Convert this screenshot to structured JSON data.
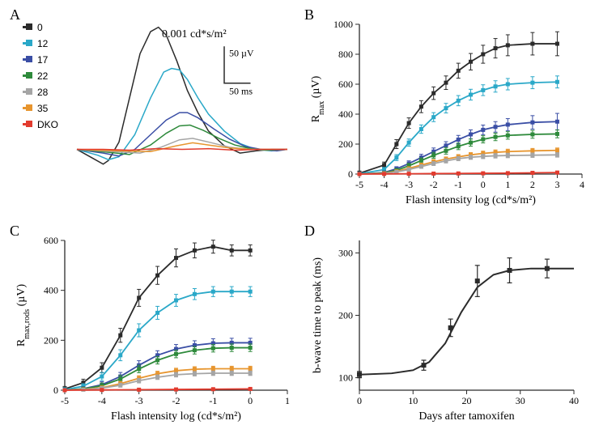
{
  "palette": {
    "c0": "#2b2b2b",
    "c12": "#2aa8c8",
    "c17": "#3a4ea5",
    "c22": "#2e8a3b",
    "c28": "#a5a5a5",
    "c35": "#e7952e",
    "cDKO": "#e23b2e",
    "axis": "#2b2b2b",
    "bg": "#ffffff"
  },
  "legend": {
    "items": [
      {
        "label": "0",
        "color_key": "c0"
      },
      {
        "label": "12",
        "color_key": "c12"
      },
      {
        "label": "17",
        "color_key": "c17"
      },
      {
        "label": "22",
        "color_key": "c22"
      },
      {
        "label": "28",
        "color_key": "c28"
      },
      {
        "label": "35",
        "color_key": "c35"
      },
      {
        "label": "DKO",
        "color_key": "cDKO"
      }
    ],
    "marker_size": 8,
    "fontsize": 12
  },
  "panelA": {
    "label": "A",
    "type": "line",
    "annotation": "0.001 cd*s/m²",
    "annotation_fontsize": 14,
    "scalebar": {
      "v_value": "50 µV",
      "h_value": "50 ms"
    },
    "x_range_ms": [
      0,
      400
    ],
    "y_range_uV": [
      -50,
      170
    ],
    "traces": {
      "0": [
        [
          0,
          0
        ],
        [
          30,
          -12
        ],
        [
          50,
          -20
        ],
        [
          60,
          -15
        ],
        [
          80,
          10
        ],
        [
          100,
          70
        ],
        [
          120,
          130
        ],
        [
          140,
          160
        ],
        [
          155,
          166
        ],
        [
          170,
          155
        ],
        [
          190,
          120
        ],
        [
          210,
          80
        ],
        [
          230,
          50
        ],
        [
          250,
          25
        ],
        [
          280,
          5
        ],
        [
          310,
          -5
        ],
        [
          340,
          -2
        ],
        [
          370,
          0
        ],
        [
          400,
          0
        ]
      ],
      "12": [
        [
          0,
          0
        ],
        [
          40,
          -8
        ],
        [
          60,
          -14
        ],
        [
          80,
          -10
        ],
        [
          110,
          20
        ],
        [
          140,
          70
        ],
        [
          165,
          105
        ],
        [
          180,
          110
        ],
        [
          195,
          108
        ],
        [
          210,
          95
        ],
        [
          230,
          70
        ],
        [
          250,
          48
        ],
        [
          280,
          25
        ],
        [
          310,
          8
        ],
        [
          340,
          0
        ],
        [
          370,
          -2
        ],
        [
          400,
          0
        ]
      ],
      "17": [
        [
          0,
          0
        ],
        [
          50,
          -5
        ],
        [
          80,
          -9
        ],
        [
          110,
          0
        ],
        [
          140,
          20
        ],
        [
          170,
          40
        ],
        [
          195,
          50
        ],
        [
          210,
          50
        ],
        [
          230,
          43
        ],
        [
          260,
          28
        ],
        [
          290,
          14
        ],
        [
          320,
          4
        ],
        [
          350,
          0
        ],
        [
          380,
          -2
        ],
        [
          400,
          0
        ]
      ],
      "22": [
        [
          0,
          0
        ],
        [
          60,
          -4
        ],
        [
          100,
          -7
        ],
        [
          140,
          6
        ],
        [
          170,
          22
        ],
        [
          195,
          32
        ],
        [
          215,
          33
        ],
        [
          240,
          26
        ],
        [
          270,
          15
        ],
        [
          300,
          6
        ],
        [
          330,
          1
        ],
        [
          360,
          -1
        ],
        [
          400,
          0
        ]
      ],
      "28": [
        [
          0,
          0
        ],
        [
          70,
          -3
        ],
        [
          120,
          -5
        ],
        [
          160,
          3
        ],
        [
          195,
          13
        ],
        [
          220,
          15
        ],
        [
          250,
          10
        ],
        [
          290,
          3
        ],
        [
          330,
          0
        ],
        [
          370,
          0
        ],
        [
          400,
          0
        ]
      ],
      "35": [
        [
          0,
          0
        ],
        [
          80,
          -2
        ],
        [
          140,
          -3
        ],
        [
          190,
          5
        ],
        [
          220,
          9
        ],
        [
          250,
          6
        ],
        [
          290,
          2
        ],
        [
          330,
          0
        ],
        [
          370,
          0
        ],
        [
          400,
          0
        ]
      ],
      "DKO": [
        [
          0,
          0
        ],
        [
          50,
          0
        ],
        [
          100,
          -1
        ],
        [
          150,
          1
        ],
        [
          200,
          0
        ],
        [
          250,
          1
        ],
        [
          300,
          -1
        ],
        [
          350,
          0
        ],
        [
          400,
          0
        ]
      ]
    },
    "line_width": 1.5
  },
  "panelB": {
    "label": "B",
    "type": "scatter-line",
    "xlabel": "Flash intensity log (cd*s/m²)",
    "ylabel": "R_max (µV)",
    "xlim": [
      -5,
      4
    ],
    "ylim": [
      0,
      1000
    ],
    "xticks": [
      -5,
      -4,
      -3,
      -2,
      -1,
      0,
      1,
      2,
      3,
      4
    ],
    "yticks": [
      0,
      200,
      400,
      600,
      800,
      1000
    ],
    "label_fontsize": 14,
    "tick_fontsize": 12,
    "line_width": 1.8,
    "marker_size": 5,
    "series": {
      "0": {
        "x": [
          -5,
          -4,
          -3.5,
          -3,
          -2.5,
          -2,
          -1.5,
          -1,
          -0.5,
          0,
          0.5,
          1,
          2,
          3
        ],
        "y": [
          5,
          60,
          200,
          340,
          450,
          540,
          610,
          690,
          750,
          800,
          840,
          860,
          870,
          870
        ],
        "err": [
          15,
          20,
          30,
          35,
          40,
          42,
          45,
          50,
          55,
          60,
          65,
          70,
          75,
          80
        ]
      },
      "12": {
        "x": [
          -5,
          -4,
          -3.5,
          -3,
          -2.5,
          -2,
          -1.5,
          -1,
          -0.5,
          0,
          0.5,
          1,
          2,
          3
        ],
        "y": [
          2,
          30,
          110,
          210,
          300,
          380,
          440,
          490,
          530,
          560,
          585,
          600,
          610,
          615
        ],
        "err": [
          10,
          14,
          20,
          24,
          28,
          30,
          32,
          34,
          36,
          36,
          38,
          38,
          40,
          40
        ]
      },
      "17": {
        "x": [
          -5,
          -4,
          -3.5,
          -3,
          -2.5,
          -2,
          -1.5,
          -1,
          -0.5,
          0,
          0.5,
          1,
          2,
          3
        ],
        "y": [
          0,
          10,
          35,
          70,
          110,
          150,
          190,
          230,
          265,
          295,
          315,
          330,
          345,
          350
        ],
        "err": [
          8,
          10,
          14,
          18,
          22,
          24,
          26,
          28,
          30,
          32,
          35,
          40,
          45,
          55
        ]
      },
      "22": {
        "x": [
          -5,
          -4,
          -3.5,
          -3,
          -2.5,
          -2,
          -1.5,
          -1,
          -0.5,
          0,
          0.5,
          1,
          2,
          3
        ],
        "y": [
          0,
          8,
          25,
          55,
          90,
          125,
          155,
          185,
          210,
          232,
          248,
          258,
          265,
          268
        ],
        "err": [
          6,
          8,
          12,
          16,
          18,
          20,
          22,
          22,
          24,
          24,
          25,
          25,
          26,
          26
        ]
      },
      "28": {
        "x": [
          -5,
          -4,
          -3.5,
          -3,
          -2.5,
          -2,
          -1.5,
          -1,
          -0.5,
          0,
          0.5,
          1,
          2,
          3
        ],
        "y": [
          0,
          4,
          14,
          30,
          50,
          70,
          88,
          103,
          112,
          118,
          122,
          124,
          126,
          128
        ],
        "err": [
          4,
          5,
          8,
          10,
          12,
          13,
          14,
          14,
          14,
          15,
          15,
          15,
          15,
          15
        ]
      },
      "35": {
        "x": [
          -5,
          -4,
          -3.5,
          -3,
          -2.5,
          -2,
          -1.5,
          -1,
          -0.5,
          0,
          0.5,
          1,
          2,
          3
        ],
        "y": [
          0,
          5,
          18,
          38,
          60,
          82,
          100,
          115,
          128,
          138,
          145,
          150,
          155,
          158
        ],
        "err": [
          4,
          6,
          9,
          11,
          13,
          14,
          14,
          15,
          15,
          15,
          16,
          16,
          16,
          16
        ]
      },
      "DKO": {
        "x": [
          -5,
          -4,
          -3,
          -2,
          -1,
          0,
          1,
          2,
          3
        ],
        "y": [
          0,
          1,
          2,
          3,
          4,
          5,
          6,
          8,
          10
        ],
        "err": [
          2,
          2,
          2,
          3,
          3,
          3,
          3,
          4,
          4
        ]
      }
    }
  },
  "panelC": {
    "label": "C",
    "type": "scatter-line",
    "xlabel": "Flash intensity log (cd*s/m²)",
    "ylabel": "R_max,rods (µV)",
    "xlim": [
      -5,
      1
    ],
    "ylim": [
      0,
      600
    ],
    "xticks": [
      -5,
      -4,
      -3,
      -2,
      -1,
      0,
      1
    ],
    "yticks": [
      0,
      200,
      400,
      600
    ],
    "label_fontsize": 14,
    "tick_fontsize": 12,
    "line_width": 1.8,
    "marker_size": 5,
    "series": {
      "0": {
        "x": [
          -5,
          -4.5,
          -4,
          -3.5,
          -3,
          -2.5,
          -2,
          -1.5,
          -1,
          -0.5,
          0
        ],
        "y": [
          5,
          30,
          90,
          220,
          370,
          460,
          530,
          560,
          575,
          560,
          560
        ],
        "err": [
          10,
          14,
          20,
          28,
          34,
          36,
          36,
          30,
          26,
          22,
          22
        ]
      },
      "12": {
        "x": [
          -5,
          -4.5,
          -4,
          -3.5,
          -3,
          -2.5,
          -2,
          -1.5,
          -1,
          -0.5,
          0
        ],
        "y": [
          2,
          16,
          55,
          140,
          240,
          310,
          360,
          385,
          395,
          395,
          395
        ],
        "err": [
          8,
          10,
          16,
          22,
          26,
          26,
          24,
          22,
          20,
          20,
          20
        ]
      },
      "17": {
        "x": [
          -5,
          -4.5,
          -4,
          -3.5,
          -3,
          -2.5,
          -2,
          -1.5,
          -1,
          -0.5,
          0
        ],
        "y": [
          0,
          6,
          22,
          55,
          100,
          140,
          165,
          180,
          188,
          190,
          190
        ],
        "err": [
          6,
          8,
          12,
          16,
          18,
          18,
          18,
          18,
          18,
          18,
          18
        ]
      },
      "22": {
        "x": [
          -5,
          -4.5,
          -4,
          -3.5,
          -3,
          -2.5,
          -2,
          -1.5,
          -1,
          -0.5,
          0
        ],
        "y": [
          0,
          5,
          18,
          45,
          85,
          120,
          145,
          160,
          168,
          170,
          170
        ],
        "err": [
          5,
          7,
          11,
          14,
          15,
          15,
          15,
          15,
          15,
          15,
          15
        ]
      },
      "28": {
        "x": [
          -5,
          -4.5,
          -4,
          -3.5,
          -3,
          -2.5,
          -2,
          -1.5,
          -1,
          -0.5,
          0
        ],
        "y": [
          0,
          2,
          8,
          20,
          38,
          52,
          62,
          66,
          68,
          68,
          68
        ],
        "err": [
          3,
          4,
          6,
          8,
          9,
          9,
          9,
          9,
          9,
          9,
          9
        ]
      },
      "35": {
        "x": [
          -5,
          -4.5,
          -4,
          -3.5,
          -3,
          -2.5,
          -2,
          -1.5,
          -1,
          -0.5,
          0
        ],
        "y": [
          0,
          3,
          10,
          26,
          48,
          66,
          78,
          84,
          86,
          86,
          86
        ],
        "err": [
          3,
          4,
          7,
          9,
          10,
          10,
          10,
          10,
          10,
          10,
          10
        ]
      },
      "DKO": {
        "x": [
          -5,
          -4,
          -3,
          -2,
          -1,
          0
        ],
        "y": [
          0,
          1,
          2,
          3,
          4,
          5
        ],
        "err": [
          2,
          2,
          2,
          2,
          2,
          2
        ]
      }
    }
  },
  "panelD": {
    "label": "D",
    "type": "scatter-line",
    "xlabel": "Days after tamoxifen",
    "ylabel": "b-wave time to peak (ms)",
    "xlim": [
      0,
      40
    ],
    "ylim": [
      80,
      320
    ],
    "xticks": [
      0,
      10,
      20,
      30,
      40
    ],
    "yticks": [
      100,
      200,
      300
    ],
    "label_fontsize": 14,
    "tick_fontsize": 12,
    "line_width": 2,
    "marker_size": 6,
    "color_key": "c0",
    "data": {
      "x": [
        0,
        12,
        17,
        22,
        28,
        35
      ],
      "y": [
        105,
        120,
        180,
        255,
        272,
        275
      ],
      "err": [
        5,
        8,
        14,
        25,
        20,
        15
      ]
    },
    "fit": [
      [
        0,
        105
      ],
      [
        6,
        107
      ],
      [
        10,
        112
      ],
      [
        13,
        125
      ],
      [
        16,
        155
      ],
      [
        19,
        205
      ],
      [
        22,
        245
      ],
      [
        25,
        265
      ],
      [
        28,
        272
      ],
      [
        32,
        275
      ],
      [
        36,
        275
      ],
      [
        40,
        275
      ]
    ]
  }
}
